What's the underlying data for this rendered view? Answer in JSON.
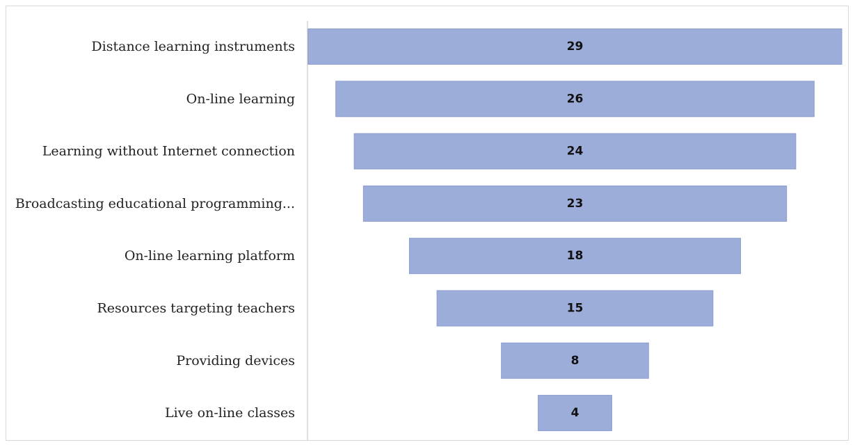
{
  "chart_data": {
    "type": "bar",
    "orientation": "horizontal",
    "style": "funnel",
    "categories": [
      "Distance learning instruments",
      "On-line learning",
      "Learning without Internet connection",
      "Broadcasting educational programming...",
      "On-line learning platform",
      "Resources targeting teachers",
      "Providing devices",
      "Live on-line classes"
    ],
    "values": [
      29,
      26,
      24,
      23,
      18,
      15,
      8,
      4
    ],
    "title": "",
    "xlabel": "",
    "ylabel": "",
    "data_labels": true,
    "grid": false,
    "colors": {
      "bar_fill": "#9dadd9",
      "bar_stroke": "#8a9ccf",
      "axis": "#bfbfbf",
      "frame": "#d9d9d9"
    }
  }
}
